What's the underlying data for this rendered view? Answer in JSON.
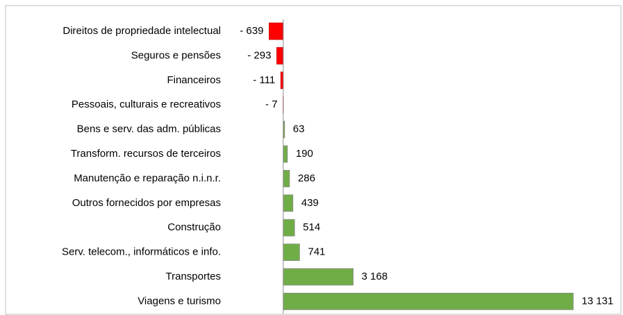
{
  "chart_data": {
    "type": "hbar",
    "categories": [
      "Direitos de propriedade intelectual",
      "Seguros e pensões",
      "Financeiros",
      "Pessoais, culturais e recreativos",
      "Bens e serv. das adm. públicas",
      "Transform. recursos de terceiros",
      "Manutenção e reparação n.i.n.r.",
      "Outros fornecidos por empresas",
      "Construção",
      "Serv. telecom., informáticos e info.",
      "Transportes",
      "Viagens e turismo"
    ],
    "values": [
      -639,
      -293,
      -111,
      -7,
      63,
      190,
      286,
      439,
      514,
      741,
      3168,
      13131
    ],
    "value_labels": [
      "- 639",
      "- 293",
      "- 111",
      "- 7",
      "63",
      "190",
      "286",
      "439",
      "514",
      "741",
      "3 168",
      "13 131"
    ],
    "color": "#70ad47",
    "negative_color": "#ff0000",
    "xlim": [
      -1000,
      14000
    ]
  }
}
